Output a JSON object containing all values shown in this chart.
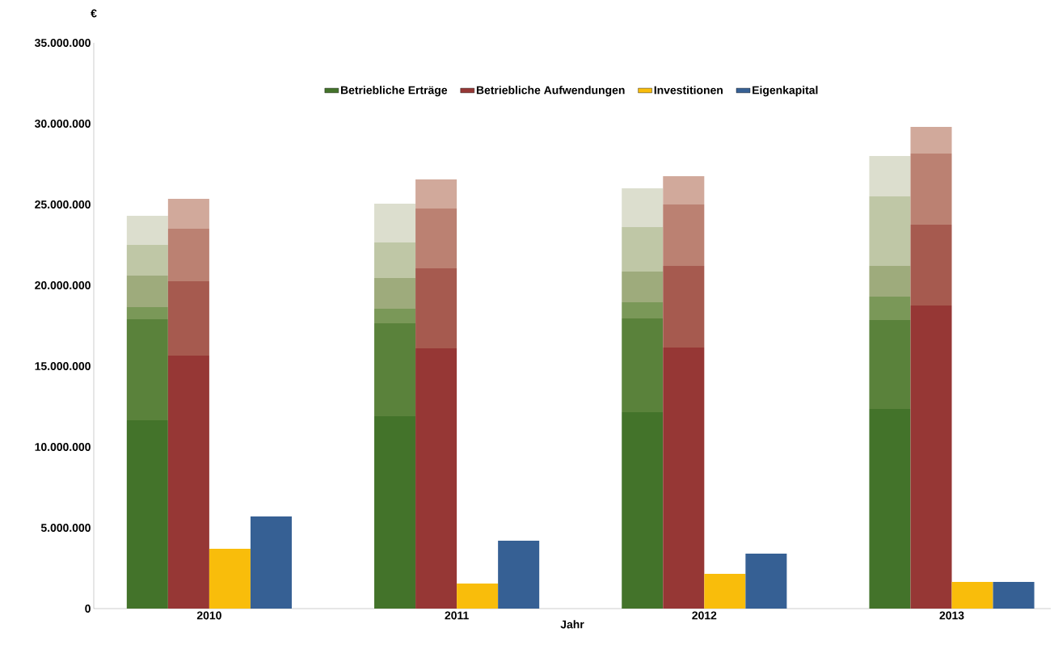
{
  "chart_data": {
    "type": "bar",
    "stacked": true,
    "xlabel": "Jahr",
    "ylabel": "€",
    "legend": "top",
    "categories": [
      null,
      "2010",
      null,
      null,
      null,
      null,
      null,
      "2011",
      null,
      null,
      null,
      null,
      null,
      "2012",
      null,
      null,
      null,
      null,
      null,
      "2013",
      null,
      null
    ],
    "ylim": [
      0,
      35000000
    ],
    "yticks": [
      {
        "value": 0,
        "label": "0"
      },
      {
        "value": 5000000,
        "label": "5.000.000"
      },
      {
        "value": 10000000,
        "label": "10.000.000"
      },
      {
        "value": 15000000,
        "label": "15.000.000"
      },
      {
        "value": 20000000,
        "label": "20.000.000"
      },
      {
        "value": 25000000,
        "label": "25.000.000"
      },
      {
        "value": 30000000,
        "label": "30.000.000"
      },
      {
        "value": 35000000,
        "label": "35.000.000"
      }
    ],
    "series": [
      {
        "name": "Betriebliche Erträge",
        "color": "#43732a",
        "values": [
          11650000,
          null,
          null,
          null,
          null,
          null,
          11900000,
          null,
          null,
          null,
          null,
          null,
          12150000,
          null,
          null,
          null,
          null,
          null,
          12350000,
          null,
          null,
          null
        ]
      },
      {
        "color": "#5a823b",
        "values": [
          6250000,
          null,
          null,
          null,
          null,
          null,
          5750000,
          null,
          null,
          null,
          null,
          null,
          5800000,
          null,
          null,
          null,
          null,
          null,
          5500000,
          null,
          null,
          null
        ]
      },
      {
        "color": "#7a9858",
        "values": [
          750000,
          null,
          null,
          null,
          null,
          null,
          900000,
          null,
          null,
          null,
          null,
          null,
          1000000,
          null,
          null,
          null,
          null,
          null,
          1450000,
          null,
          null,
          null
        ]
      },
      {
        "color": "#9eab7c",
        "values": [
          1950000,
          null,
          null,
          null,
          null,
          null,
          1900000,
          null,
          null,
          null,
          null,
          null,
          1900000,
          null,
          null,
          null,
          null,
          null,
          1900000,
          null,
          null,
          null
        ]
      },
      {
        "color": "#bfc7a6",
        "values": [
          1900000,
          null,
          null,
          null,
          null,
          null,
          2200000,
          null,
          null,
          null,
          null,
          null,
          2750000,
          null,
          null,
          null,
          null,
          null,
          4300000,
          null,
          null,
          null
        ]
      },
      {
        "color": "#dcdece",
        "values": [
          1800000,
          null,
          null,
          null,
          null,
          null,
          2400000,
          null,
          null,
          null,
          null,
          null,
          2400000,
          null,
          null,
          null,
          null,
          null,
          2500000,
          null,
          null,
          null
        ]
      },
      {
        "name": "Betriebliche Aufwendungen",
        "color": "#963735",
        "values": [
          null,
          15650000,
          null,
          null,
          null,
          null,
          null,
          16100000,
          null,
          null,
          null,
          null,
          null,
          16150000,
          null,
          null,
          null,
          null,
          null,
          18750000,
          null,
          null
        ]
      },
      {
        "color": "#a65a4f",
        "values": [
          null,
          4600000,
          null,
          null,
          null,
          null,
          null,
          4950000,
          null,
          null,
          null,
          null,
          null,
          5050000,
          null,
          null,
          null,
          null,
          null,
          5000000,
          null,
          null
        ]
      },
      {
        "color": "#bb8172",
        "values": [
          null,
          3250000,
          null,
          null,
          null,
          null,
          null,
          3700000,
          null,
          null,
          null,
          null,
          null,
          3800000,
          null,
          null,
          null,
          null,
          null,
          4400000,
          null,
          null
        ]
      },
      {
        "color": "#d1a99b",
        "values": [
          null,
          1850000,
          null,
          null,
          null,
          null,
          null,
          1800000,
          null,
          null,
          null,
          null,
          null,
          1750000,
          null,
          null,
          null,
          null,
          null,
          1650000,
          null,
          null
        ]
      },
      {
        "name": "Investitionen",
        "color": "#f9bd0b",
        "values": [
          null,
          null,
          3700000,
          null,
          null,
          null,
          null,
          null,
          1550000,
          null,
          null,
          null,
          null,
          null,
          2150000,
          null,
          null,
          null,
          null,
          null,
          1650000,
          null
        ]
      },
      {
        "name": "Eigenkapital",
        "color": "#366094",
        "values": [
          null,
          null,
          null,
          5700000,
          null,
          null,
          null,
          null,
          null,
          4200000,
          null,
          null,
          null,
          null,
          null,
          3400000,
          null,
          null,
          null,
          null,
          null,
          1650000
        ]
      }
    ]
  }
}
